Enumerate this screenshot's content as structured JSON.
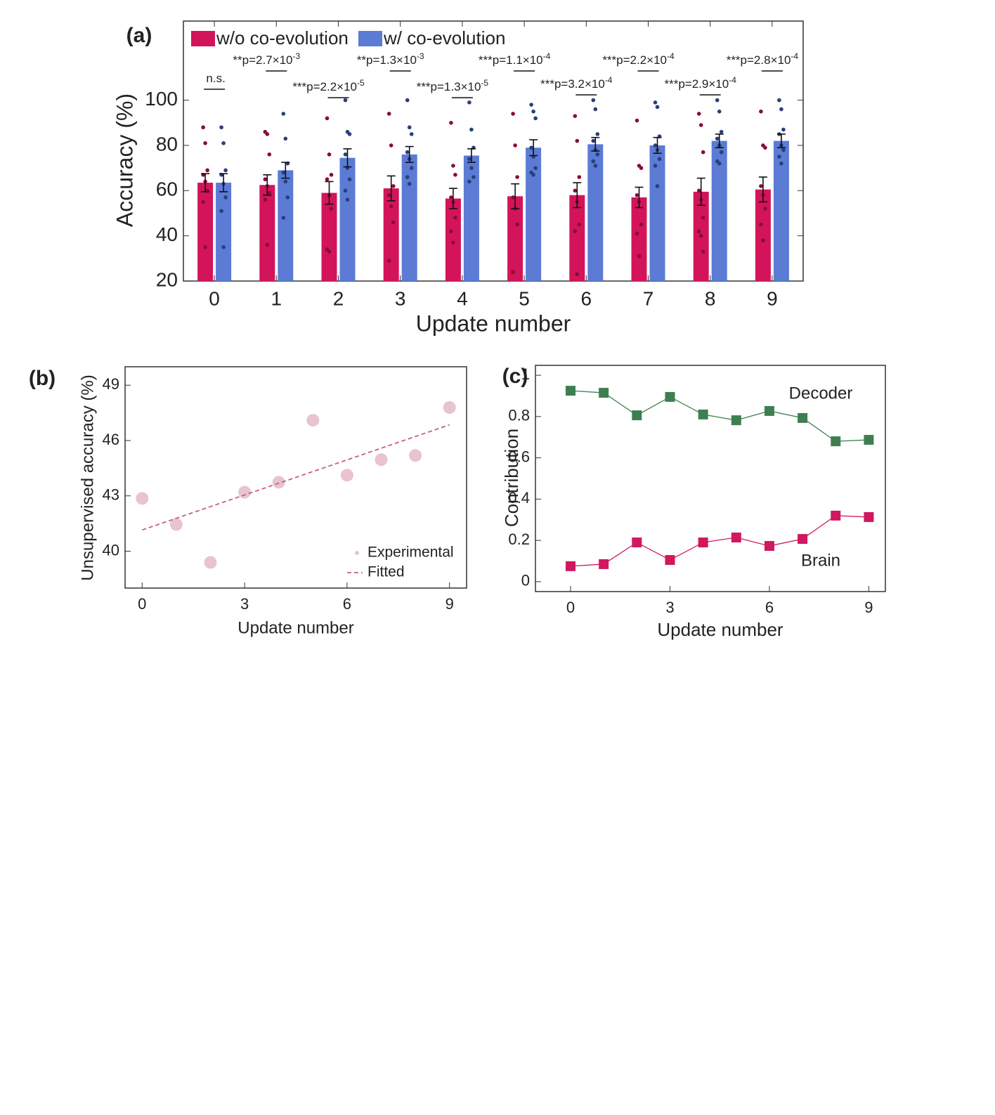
{
  "chart_data": [
    {
      "type": "bar",
      "panel_label": "(a)",
      "ylabel": "Accuracy (%)",
      "xlabel": "Update number",
      "categories": [
        "0",
        "1",
        "2",
        "3",
        "4",
        "5",
        "6",
        "7",
        "8",
        "9"
      ],
      "ylim": [
        20,
        135
      ],
      "yticks": [
        20,
        40,
        60,
        80,
        100
      ],
      "series": [
        {
          "name": "w/o co-evolution",
          "color": "#d4145a",
          "dot_color": "#8b0a3a",
          "values": [
            63.5,
            62.5,
            59,
            61,
            56.5,
            57.5,
            58,
            57,
            59.5,
            60.5
          ],
          "errors": [
            4,
            4.5,
            5,
            5.5,
            4.5,
            5.5,
            5.5,
            4.5,
            6,
            5.5
          ],
          "points": [
            [
              88,
              81,
              69,
              67,
              64,
              60,
              55,
              35
            ],
            [
              86,
              85,
              76,
              65,
              62,
              59,
              56,
              36
            ],
            [
              92,
              76,
              67,
              65,
              58,
              52,
              34,
              33
            ],
            [
              94,
              80,
              62,
              58,
              53,
              46,
              29
            ],
            [
              90,
              71,
              67,
              57,
              55,
              48,
              42,
              37
            ],
            [
              94,
              80,
              66,
              57,
              52,
              45,
              24
            ],
            [
              93,
              82,
              66,
              60,
              55,
              45,
              42,
              23
            ],
            [
              91,
              71,
              70,
              58,
              55,
              45,
              41,
              31
            ],
            [
              94,
              89,
              77,
              60,
              56,
              48,
              42,
              40,
              33
            ],
            [
              95,
              80,
              79,
              62,
              58,
              52,
              45,
              38
            ]
          ]
        },
        {
          "name": "w/  co-evolution",
          "color": "#5b7bd5",
          "dot_color": "#2a3f7a",
          "values": [
            63.5,
            69,
            74.5,
            76,
            75.5,
            79,
            80.5,
            80,
            82,
            82
          ],
          "errors": [
            4,
            3.5,
            4,
            3.5,
            3,
            3.5,
            3,
            3.5,
            3,
            3
          ],
          "points": [
            [
              88,
              81,
              69,
              67,
              63,
              57,
              51,
              35
            ],
            [
              94,
              83,
              72,
              68,
              64,
              57,
              48
            ],
            [
              100,
              86,
              85,
              76,
              70,
              65,
              60,
              56
            ],
            [
              100,
              88,
              85,
              77,
              74,
              70,
              66,
              63
            ],
            [
              99,
              87,
              79,
              74,
              70,
              66,
              64
            ],
            [
              98,
              95,
              92,
              79,
              75,
              70,
              68,
              67
            ],
            [
              100,
              96,
              85,
              82,
              78,
              76,
              73,
              71
            ],
            [
              99,
              97,
              84,
              80,
              78,
              74,
              71,
              62
            ],
            [
              100,
              95,
              86,
              83,
              80,
              77,
              73,
              72
            ],
            [
              100,
              96,
              87,
              85,
              80,
              78,
              75,
              72
            ]
          ]
        }
      ],
      "annotations": [
        {
          "text": "n.s."
        },
        {
          "text": "**p=2.7×10",
          "exponent": "-3"
        },
        {
          "text": "***p=2.2×10",
          "exponent": "-5"
        },
        {
          "text": "**p=1.3×10",
          "exponent": "-3"
        },
        {
          "text": "***p=1.3×10",
          "exponent": "-5"
        },
        {
          "text": "***p=1.1×10",
          "exponent": "-4"
        },
        {
          "text": "***p=3.2×10",
          "exponent": "-4"
        },
        {
          "text": "***p=2.2×10",
          "exponent": "-4"
        },
        {
          "text": "***p=2.9×10",
          "exponent": "-4"
        },
        {
          "text": "***p=2.8×10",
          "exponent": "-4"
        }
      ]
    },
    {
      "type": "scatter",
      "panel_label": "(b)",
      "ylabel": "Unsupervised accuracy (%)",
      "xlabel": "Update number",
      "xlim": [
        -0.5,
        9.5
      ],
      "xticks": [
        0,
        3,
        6,
        9
      ],
      "ylim": [
        38,
        50
      ],
      "yticks": [
        40,
        43,
        46,
        49
      ],
      "series": [
        {
          "name": "Experimental",
          "color": "#e8c3d0",
          "x": [
            0,
            1,
            2,
            3,
            4,
            5,
            6,
            7,
            8,
            9
          ],
          "values": [
            42.86,
            41.45,
            39.39,
            43.2,
            43.74,
            47.1,
            44.12,
            44.96,
            45.19,
            47.79
          ]
        },
        {
          "name": "Fitted",
          "color": "#c8607a",
          "style": "dashed",
          "x": [
            0,
            9
          ],
          "values": [
            41.15,
            46.85
          ]
        }
      ]
    },
    {
      "type": "line",
      "panel_label": "(c)",
      "ylabel": "Contribution",
      "xlabel": "Update number",
      "xlim": [
        -1.06,
        9.5
      ],
      "xticks": [
        0,
        3,
        6,
        9
      ],
      "ylim": [
        -0.048,
        1.048
      ],
      "yticks": [
        0,
        0.2,
        0.4,
        0.6,
        0.8,
        1
      ],
      "x": [
        0,
        1,
        2,
        3,
        4,
        5,
        6,
        7,
        8,
        9
      ],
      "series": [
        {
          "name": "Decoder",
          "color": "#3e7f52",
          "values": [
            0.925,
            0.915,
            0.806,
            0.895,
            0.81,
            0.782,
            0.827,
            0.793,
            0.68,
            0.687
          ]
        },
        {
          "name": "Brain",
          "color": "#d0175f",
          "values": [
            0.075,
            0.085,
            0.19,
            0.105,
            0.19,
            0.214,
            0.173,
            0.207,
            0.32,
            0.313
          ]
        }
      ]
    }
  ]
}
